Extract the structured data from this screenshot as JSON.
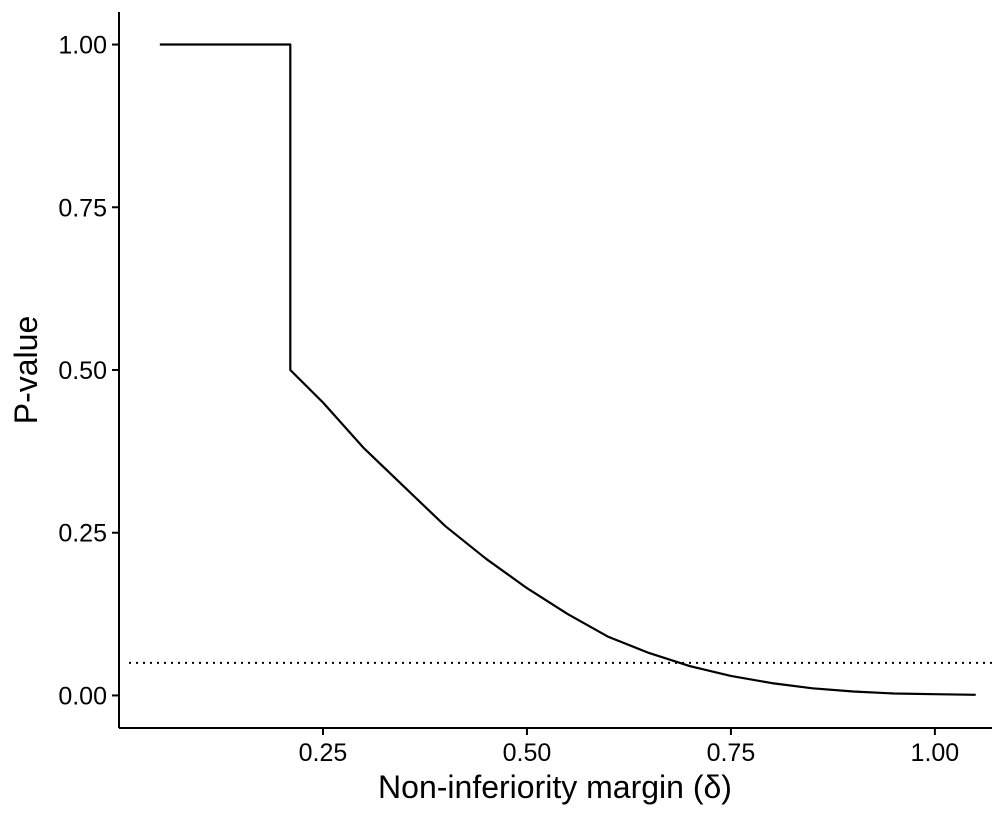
{
  "chart_data": {
    "type": "line",
    "title": "",
    "xlabel": "Non-inferiority margin (δ)",
    "ylabel": "P-value",
    "xlim": [
      0.0,
      1.07
    ],
    "ylim": [
      -0.05,
      1.05
    ],
    "x_ticks": [
      {
        "value": 0.25,
        "label": "0.25"
      },
      {
        "value": 0.5,
        "label": "0.50"
      },
      {
        "value": 0.75,
        "label": "0.75"
      },
      {
        "value": 1.0,
        "label": "1.00"
      }
    ],
    "y_ticks": [
      {
        "value": 0.0,
        "label": "0.00"
      },
      {
        "value": 0.25,
        "label": "0.25"
      },
      {
        "value": 0.5,
        "label": "0.50"
      },
      {
        "value": 0.75,
        "label": "0.75"
      },
      {
        "value": 1.0,
        "label": "1.00"
      }
    ],
    "grid": false,
    "legend": "none",
    "series": [
      {
        "color": "#000000",
        "line_style": "solid",
        "x": [
          0.05,
          0.21,
          0.21,
          0.25,
          0.3,
          0.35,
          0.4,
          0.45,
          0.5,
          0.55,
          0.6,
          0.65,
          0.7,
          0.75,
          0.8,
          0.85,
          0.9,
          0.95,
          1.0,
          1.05
        ],
        "y": [
          1.0,
          1.0,
          0.5,
          0.45,
          0.38,
          0.32,
          0.26,
          0.21,
          0.165,
          0.125,
          0.09,
          0.065,
          0.045,
          0.03,
          0.019,
          0.011,
          0.006,
          0.003,
          0.002,
          0.001
        ]
      }
    ],
    "reference_lines": [
      {
        "orientation": "horizontal",
        "y": 0.05,
        "line_style": "dotted",
        "color": "#000000"
      }
    ]
  }
}
